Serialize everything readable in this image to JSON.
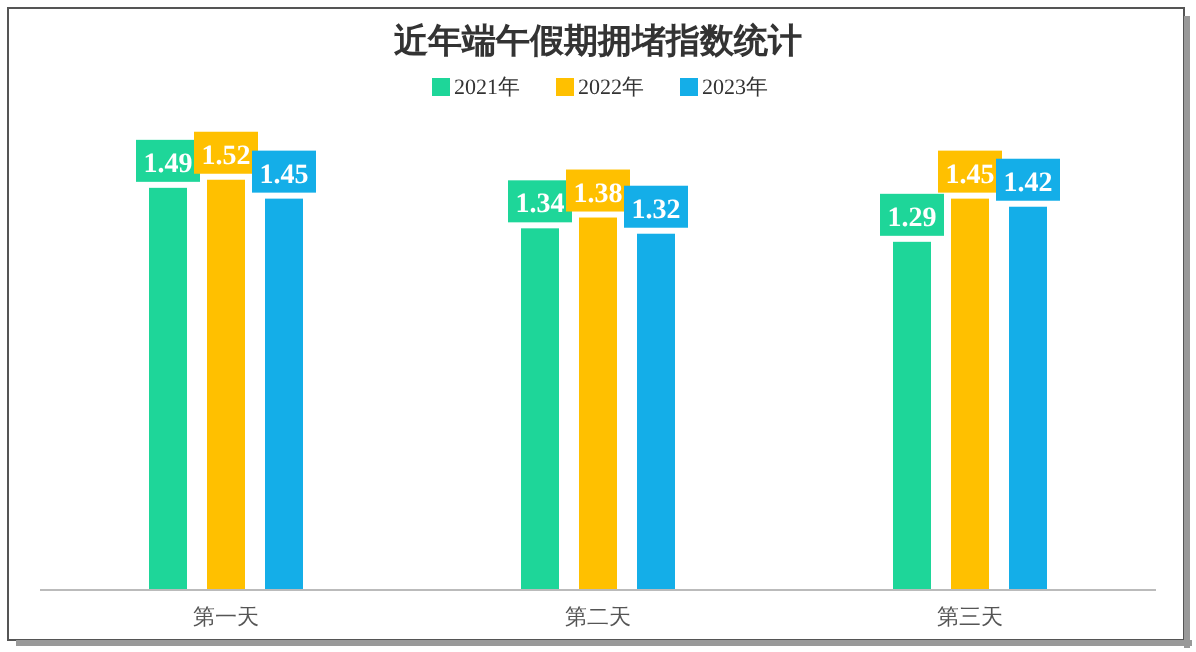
{
  "chart_data": {
    "type": "bar",
    "title": "近年端午假期拥堵指数统计",
    "categories": [
      "第一天",
      "第二天",
      "第三天"
    ],
    "series": [
      {
        "name": "2021年",
        "color": "#1ed699",
        "values": [
          1.49,
          1.34,
          1.29
        ]
      },
      {
        "name": "2022年",
        "color": "#ffc000",
        "values": [
          1.52,
          1.38,
          1.45
        ]
      },
      {
        "name": "2023年",
        "color": "#14aee8",
        "values": [
          1.45,
          1.32,
          1.42
        ]
      }
    ],
    "data_labels": true,
    "legend": "top"
  }
}
